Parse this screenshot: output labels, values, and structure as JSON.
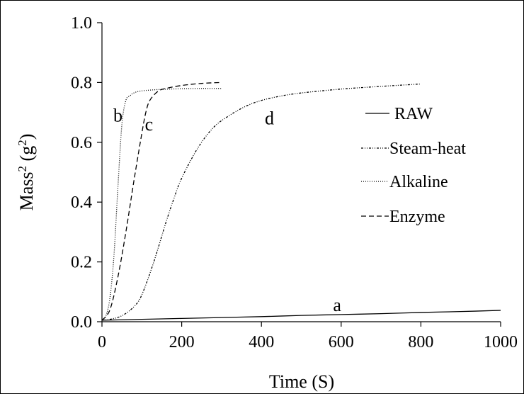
{
  "chart_data": {
    "type": "line",
    "xlabel": "Time (S)",
    "ylabel_main": "Mass",
    "ylabel_sup": "2",
    "ylabel_unit_pre": " (g",
    "ylabel_unit_sup": "2",
    "ylabel_unit_post": ")",
    "xlim": [
      0,
      1000
    ],
    "ylim": [
      0,
      1.0
    ],
    "x_ticks": [
      "0",
      "200",
      "400",
      "600",
      "800",
      "1000"
    ],
    "y_ticks": [
      "0.0",
      "0.2",
      "0.4",
      "0.6",
      "0.8",
      "1.0"
    ],
    "x_tick_values": [
      0,
      200,
      400,
      600,
      800,
      1000
    ],
    "y_tick_values": [
      0,
      0.2,
      0.4,
      0.6,
      0.8,
      1.0
    ],
    "grid": false,
    "legend_position": "right",
    "series": [
      {
        "name": "RAW",
        "style": "solid",
        "annotation": "a",
        "x": [
          0,
          100,
          200,
          300,
          400,
          500,
          600,
          700,
          800,
          900,
          1000
        ],
        "y": [
          0.005,
          0.008,
          0.011,
          0.014,
          0.017,
          0.021,
          0.024,
          0.027,
          0.031,
          0.034,
          0.038
        ]
      },
      {
        "name": "Steam-heat",
        "style": "dashdotdot",
        "annotation": "d",
        "x": [
          0,
          20,
          50,
          80,
          100,
          130,
          160,
          180,
          200,
          240,
          280,
          320,
          360,
          400,
          450,
          500,
          600,
          700,
          800
        ],
        "y": [
          0.005,
          0.008,
          0.02,
          0.05,
          0.09,
          0.2,
          0.33,
          0.41,
          0.48,
          0.58,
          0.65,
          0.69,
          0.72,
          0.74,
          0.755,
          0.765,
          0.778,
          0.787,
          0.795
        ]
      },
      {
        "name": "Alkaline",
        "style": "dotted",
        "annotation": "b",
        "x": [
          0,
          10,
          20,
          30,
          40,
          50,
          60,
          70,
          80,
          100,
          150,
          200,
          250,
          300
        ],
        "y": [
          0.005,
          0.02,
          0.08,
          0.22,
          0.45,
          0.66,
          0.74,
          0.755,
          0.765,
          0.772,
          0.777,
          0.779,
          0.78,
          0.78
        ]
      },
      {
        "name": "Enzyme",
        "style": "dashed",
        "annotation": "c",
        "x": [
          0,
          20,
          40,
          60,
          80,
          100,
          110,
          120,
          140,
          160,
          200,
          250,
          300
        ],
        "y": [
          0.005,
          0.04,
          0.15,
          0.3,
          0.47,
          0.63,
          0.7,
          0.74,
          0.77,
          0.78,
          0.79,
          0.797,
          0.8
        ]
      }
    ],
    "annotations": [
      {
        "text": "a",
        "x": 590,
        "y": 0.035
      },
      {
        "text": "b",
        "x": 40,
        "y": 0.67
      },
      {
        "text": "c",
        "x": 118,
        "y": 0.64
      },
      {
        "text": "d",
        "x": 420,
        "y": 0.66
      }
    ]
  }
}
